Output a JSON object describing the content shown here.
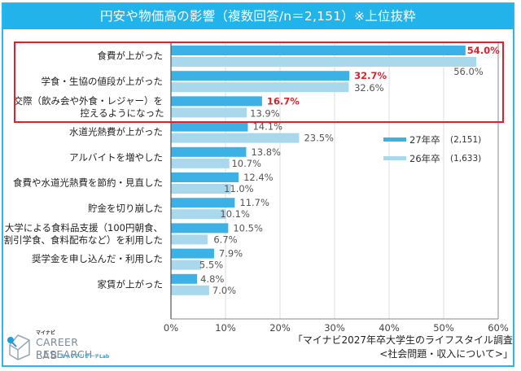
{
  "title": "円安や物価高の影響（複数回答/n＝2,151）※上位抜粋",
  "colors": {
    "frame": "#29b6e8",
    "title_bg": "#22b3ea",
    "series_27": "#3bb1e6",
    "series_26": "#a9d8ec",
    "highlight": "#e0202a",
    "label_gray": "#555555"
  },
  "chart_data": {
    "type": "bar",
    "orientation": "horizontal",
    "title": "円安や物価高の影響（複数回答/n＝2,151）※上位抜粋",
    "xlabel": "",
    "ylabel": "",
    "xlim": [
      0,
      60
    ],
    "x_ticks": [
      "0%",
      "10%",
      "20%",
      "30%",
      "40%",
      "50%",
      "60%"
    ],
    "grid": true,
    "legend_position": "right-middle",
    "categories": [
      [
        "食費が上がった"
      ],
      [
        "学食・生協の値段が上がった"
      ],
      [
        "交際（飲み会や外食・レジャー）を",
        "控えるようになった"
      ],
      [
        "水道光熱費が上がった"
      ],
      [
        "アルバイトを増やした"
      ],
      [
        "食費や水道光熱費を節約・見直した"
      ],
      [
        "貯金を切り崩した"
      ],
      [
        "大学による食料品支援（100円朝食、",
        "割引学食、食料配布など）を利用した"
      ],
      [
        "奨学金を申し込んだ・利用した"
      ],
      [
        "家賃が上がった"
      ]
    ],
    "series": [
      {
        "name": "27年卒",
        "n": "(2,151)",
        "values": [
          54.0,
          32.7,
          16.7,
          14.1,
          13.8,
          12.4,
          11.7,
          10.5,
          7.9,
          4.8
        ]
      },
      {
        "name": "26年卒",
        "n": "(1,633)",
        "values": [
          56.0,
          32.6,
          13.9,
          23.5,
          10.7,
          11.0,
          10.1,
          6.7,
          5.5,
          7.0
        ]
      }
    ],
    "highlighted_rows": [
      0,
      1,
      2
    ],
    "unit": "%"
  },
  "footer": {
    "source_line1": "「マイナビ2027年卒大学生のライフスタイル調査",
    "source_line2": "<社会問題・収入について>」"
  },
  "logo": {
    "brand_small": "マイナビ",
    "line1": "CAREER RESEARCH",
    "line2": "LAB",
    "sub": "キャリアリサーチLab"
  }
}
